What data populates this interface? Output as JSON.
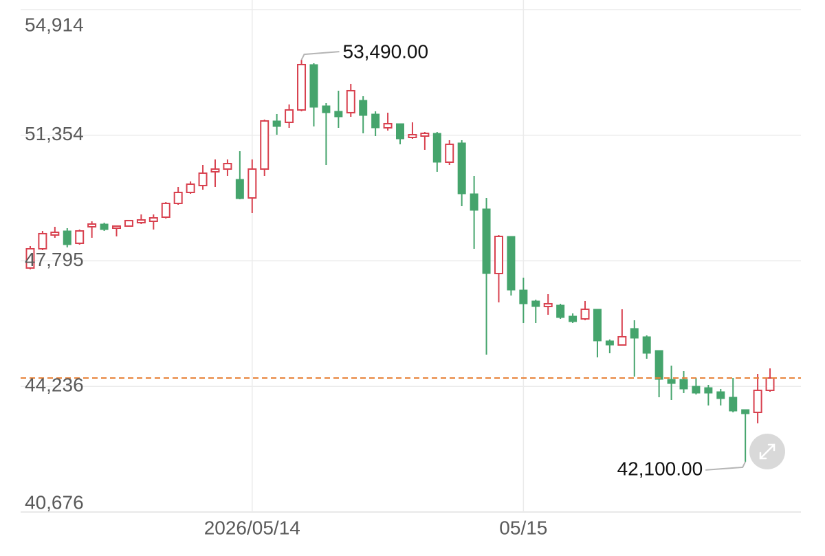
{
  "chart_data": {
    "type": "candlestick",
    "categories": [
      null,
      null,
      null,
      null,
      null,
      null,
      null,
      null,
      null,
      null,
      null,
      null,
      null,
      null,
      null,
      null,
      null,
      null,
      "2026/05/14",
      null,
      null,
      null,
      null,
      null,
      null,
      null,
      null,
      null,
      null,
      null,
      null,
      null,
      null,
      null,
      null,
      null,
      null,
      null,
      null,
      null,
      "05/15",
      null,
      null,
      null,
      null,
      null,
      null,
      null,
      null,
      null,
      null,
      null,
      null,
      null,
      null,
      null,
      null,
      null,
      null,
      null,
      null
    ],
    "open": [
      47591,
      48136,
      48526,
      48642,
      48292,
      48759,
      48837,
      48720,
      48779,
      48876,
      48915,
      49032,
      49422,
      49733,
      49928,
      50318,
      50395,
      50103,
      49577,
      50395,
      51759,
      51720,
      52071,
      53356,
      52187,
      52032,
      51993,
      52343,
      51954,
      51564,
      51681,
      51291,
      51330,
      51408,
      50590,
      51136,
      49694,
      49266,
      47435,
      48487,
      46967,
      46656,
      46500,
      46539,
      46227,
      46149,
      46422,
      45526,
      45409,
      45877,
      45643,
      45253,
      44435,
      44435,
      44240,
      44201,
      44085,
      43929,
      43578,
      43500,
      44124
    ],
    "high": [
      48214,
      48642,
      48759,
      48720,
      48681,
      48915,
      48876,
      48798,
      48954,
      49110,
      49110,
      49460,
      49889,
      50045,
      50512,
      50668,
      50668,
      50902,
      50668,
      51798,
      51954,
      52226,
      53490,
      53395,
      52265,
      52616,
      52811,
      52460,
      52032,
      51993,
      51681,
      51720,
      51447,
      51447,
      51213,
      51213,
      50201,
      49577,
      48526,
      48487,
      47318,
      46695,
      46850,
      46578,
      46305,
      46656,
      46422,
      45565,
      46422,
      46110,
      45682,
      45253,
      44825,
      44669,
      44474,
      44279,
      44163,
      44474,
      43578,
      44591,
      44747
    ],
    "low": [
      47552,
      48097,
      48448,
      48175,
      48253,
      48448,
      48642,
      48487,
      48759,
      48837,
      48681,
      48993,
      49383,
      49694,
      49811,
      49889,
      50201,
      49538,
      49149,
      50201,
      51369,
      51564,
      52032,
      51603,
      50512,
      51564,
      51876,
      51408,
      51330,
      51486,
      51097,
      51252,
      50941,
      50318,
      50512,
      49344,
      48136,
      45136,
      46617,
      46812,
      46032,
      46032,
      46266,
      46149,
      46032,
      46110,
      45058,
      45175,
      45409,
      44513,
      45020,
      43929,
      43851,
      44046,
      44007,
      43695,
      43695,
      43500,
      42100,
      43189,
      44085
    ],
    "close": [
      48136,
      48565,
      48603,
      48253,
      48642,
      48837,
      48681,
      48779,
      48935,
      48954,
      49012,
      49422,
      49733,
      49967,
      50279,
      50395,
      50551,
      49558,
      50395,
      51759,
      51603,
      52071,
      53356,
      52148,
      51993,
      51876,
      52616,
      51915,
      51564,
      51681,
      51252,
      51369,
      51408,
      50590,
      51097,
      49694,
      49227,
      47435,
      48487,
      46967,
      46578,
      46500,
      46578,
      46188,
      46071,
      46422,
      45526,
      45409,
      45643,
      45604,
      45175,
      44435,
      44318,
      44163,
      44046,
      44046,
      43890,
      43539,
      43461,
      44124,
      44474
    ],
    "up_color": "#d8404e",
    "down_color": "#45a46c",
    "last_price_color": "#e8833a",
    "ylim": [
      40676,
      54914
    ],
    "yticks": [
      {
        "value": 54914,
        "label": "54,914"
      },
      {
        "value": 51354,
        "label": "51,354"
      },
      {
        "value": 47795,
        "label": "47,795"
      },
      {
        "value": 44236,
        "label": "44,236"
      },
      {
        "value": 40676,
        "label": "40,676"
      }
    ],
    "grid": true,
    "annotations": [
      {
        "value": 53490,
        "label": "53,490.00"
      },
      {
        "value": 42100,
        "label": "42,100.00"
      }
    ]
  }
}
